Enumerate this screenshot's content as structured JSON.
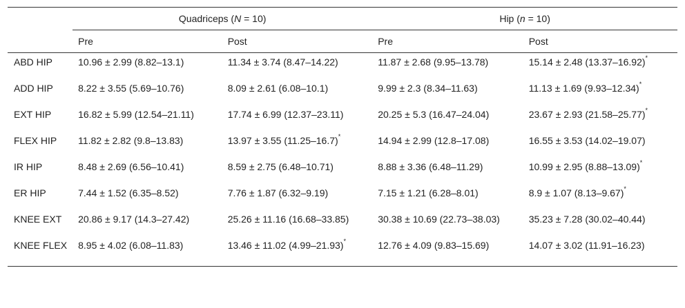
{
  "table": {
    "group_headers": [
      {
        "pre": "Quadriceps (",
        "var": "N",
        "post": " = 10)"
      },
      {
        "pre": "Hip (",
        "var": "n",
        "post": " = 10)"
      }
    ],
    "sub_headers": [
      "Pre",
      "Post",
      "Pre",
      "Post"
    ],
    "rows": [
      {
        "label": "ABD HIP",
        "cells": [
          {
            "text": "10.96 ± 2.99 (8.82–13.1)",
            "sig": ""
          },
          {
            "text": "11.34 ± 3.74 (8.47–14.22)",
            "sig": ""
          },
          {
            "text": "11.87 ± 2.68 (9.95–13.78)",
            "sig": ""
          },
          {
            "text": "15.14 ± 2.48 (13.37–16.92)",
            "sig": "*"
          }
        ]
      },
      {
        "label": "ADD HIP",
        "cells": [
          {
            "text": "8.22 ± 3.55 (5.69–10.76)",
            "sig": ""
          },
          {
            "text": "8.09 ± 2.61 (6.08–10.1)",
            "sig": ""
          },
          {
            "text": "9.99 ± 2.3 (8.34–11.63)",
            "sig": ""
          },
          {
            "text": "11.13 ± 1.69 (9.93–12.34)",
            "sig": "*"
          }
        ]
      },
      {
        "label": "EXT HIP",
        "cells": [
          {
            "text": "16.82 ± 5.99 (12.54–21.11)",
            "sig": ""
          },
          {
            "text": "17.74 ± 6.99 (12.37–23.11)",
            "sig": ""
          },
          {
            "text": "20.25 ± 5.3 (16.47–24.04)",
            "sig": ""
          },
          {
            "text": "23.67 ± 2.93 (21.58–25.77)",
            "sig": "*"
          }
        ]
      },
      {
        "label": "FLEX HIP",
        "cells": [
          {
            "text": "11.82 ± 2.82 (9.8–13.83)",
            "sig": ""
          },
          {
            "text": "13.97 ± 3.55 (11.25–16.7)",
            "sig": "*"
          },
          {
            "text": "14.94 ± 2.99 (12.8–17.08)",
            "sig": ""
          },
          {
            "text": "16.55 ± 3.53 (14.02–19.07)",
            "sig": ""
          }
        ]
      },
      {
        "label": "IR HIP",
        "cells": [
          {
            "text": "8.48 ± 2.69 (6.56–10.41)",
            "sig": ""
          },
          {
            "text": "8.59 ± 2.75 (6.48–10.71)",
            "sig": ""
          },
          {
            "text": "8.88 ± 3.36 (6.48–11.29)",
            "sig": ""
          },
          {
            "text": "10.99 ± 2.95 (8.88–13.09)",
            "sig": "*"
          }
        ]
      },
      {
        "label": "ER HIP",
        "cells": [
          {
            "text": "7.44 ± 1.52 (6.35–8.52)",
            "sig": ""
          },
          {
            "text": "7.76 ± 1.87 (6.32–9.19)",
            "sig": ""
          },
          {
            "text": "7.15 ± 1.21 (6.28–8.01)",
            "sig": ""
          },
          {
            "text": "8.9 ± 1.07 (8.13–9.67)",
            "sig": "*"
          }
        ]
      },
      {
        "label": "KNEE EXT",
        "cells": [
          {
            "text": "20.86 ± 9.17 (14.3–27.42)",
            "sig": ""
          },
          {
            "text": "25.26 ± 11.16 (16.68–33.85)",
            "sig": ""
          },
          {
            "text": "30.38 ± 10.69 (22.73–38.03)",
            "sig": ""
          },
          {
            "text": "35.23 ± 7.28 (30.02–40.44)",
            "sig": ""
          }
        ]
      },
      {
        "label": "KNEE FLEX",
        "cells": [
          {
            "text": "8.95 ± 4.02 (6.08–11.83)",
            "sig": ""
          },
          {
            "text": "13.46 ± 11.02 (4.99–21.93)",
            "sig": "*"
          },
          {
            "text": "12.76 ± 4.09 (9.83–15.69)",
            "sig": ""
          },
          {
            "text": "14.07 ± 3.02 (11.91–16.23)",
            "sig": ""
          }
        ]
      }
    ]
  }
}
